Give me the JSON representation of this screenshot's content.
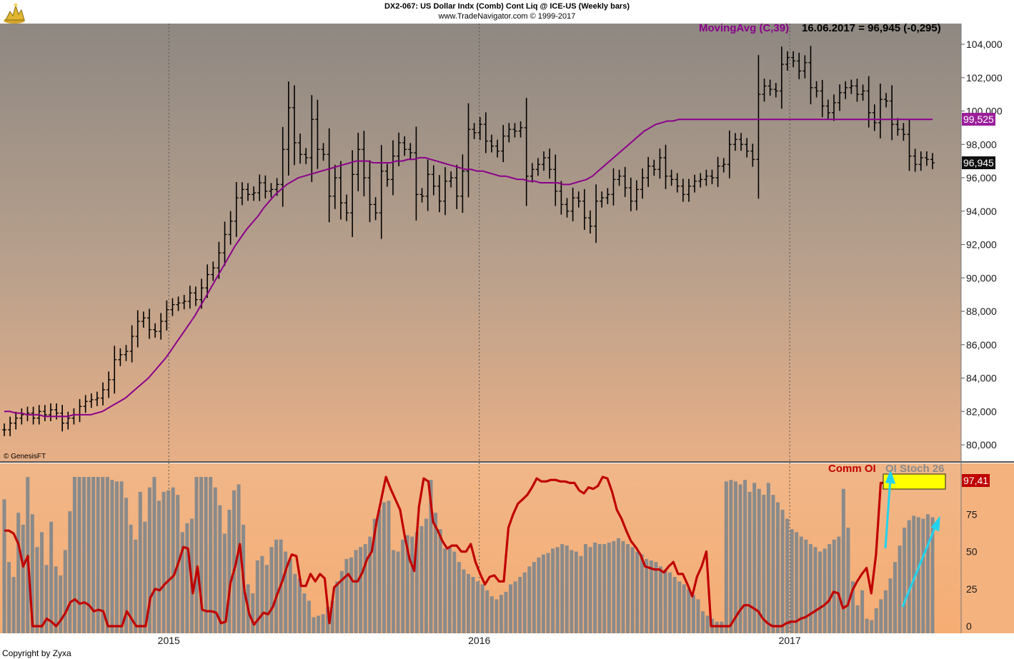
{
  "header": {
    "title": "DX2-067:  US Dollar Indx (Comb) Cont Liq @ ICE-US  (Weekly bars)",
    "subtitle": "www.TradeNavigator.com © 1999-2017"
  },
  "legend": {
    "moving_avg": "MovingAvg (C,39)",
    "last_value": "16.06.2017 = 96,945 (-0,295)",
    "comm_oi": "Comm OI",
    "oi_stoch": "OI Stoch 26"
  },
  "badges": {
    "ma": "99,525",
    "last": "96,945",
    "comm_oi": "97,41"
  },
  "footer": {
    "genesis": "© GenesisFT",
    "copyright": "Copyright by Zyxa"
  },
  "colors": {
    "ma_line": "#8B008B",
    "comm_oi_line": "#c00000",
    "bars": "#000000",
    "oi_stoch_bars": "#8a8a8a",
    "highlight_box": "#ffff00",
    "arrows": "#22d3ee"
  },
  "chart_data": [
    {
      "type": "ohlc",
      "name": "price",
      "ylim": [
        79000,
        105000
      ],
      "yticks": [
        80000,
        82000,
        84000,
        86000,
        88000,
        90000,
        92000,
        94000,
        96000,
        98000,
        100000,
        102000,
        104000
      ],
      "ytick_labels": [
        "80,000",
        "82,000",
        "84,000",
        "86,000",
        "88,000",
        "90,000",
        "92,000",
        "94,000",
        "96,000",
        "98,000",
        "100,000",
        "102,000",
        "104,000"
      ],
      "xticks": [
        2015,
        2016,
        2017
      ],
      "x_start": 2014.47,
      "x_end": 2017.46,
      "close": [
        80.9,
        81.3,
        81.6,
        81.8,
        81.9,
        81.6,
        82.0,
        81.8,
        82.1,
        81.9,
        81.3,
        81.6,
        81.8,
        82.3,
        82.6,
        82.7,
        82.8,
        83.3,
        83.9,
        85.1,
        85.4,
        85.6,
        86.5,
        87.4,
        87.6,
        86.9,
        86.8,
        87.4,
        88.1,
        88.4,
        88.5,
        88.6,
        89.1,
        88.7,
        89.4,
        90.2,
        90.6,
        91.5,
        92.6,
        93.4,
        94.8,
        95.3,
        95.0,
        95.1,
        95.7,
        95.2,
        95.3,
        95.6,
        97.7,
        100.2,
        98.1,
        97.4,
        97.2,
        99.5,
        97.7,
        97.4,
        94.9,
        96.0,
        94.5,
        93.9,
        96.2,
        97.7,
        96.0,
        94.4,
        93.9,
        96.4,
        95.9,
        97.3,
        98.1,
        97.7,
        97.5,
        95.0,
        94.9,
        96.2,
        95.5,
        94.6,
        95.8,
        96.0,
        94.9,
        96.4,
        98.9,
        98.7,
        99.2,
        98.2,
        97.9,
        97.6,
        98.5,
        98.9,
        98.8,
        99.0,
        96.1,
        96.5,
        96.8,
        97.2,
        96.5,
        95.2,
        94.4,
        94.0,
        94.8,
        94.6,
        93.6,
        93.1,
        94.6,
        94.8,
        95.0,
        95.9,
        96.1,
        95.4,
        94.6,
        95.3,
        96.0,
        96.7,
        96.5,
        97.2,
        96.1,
        95.9,
        95.5,
        95.0,
        95.5,
        95.8,
        95.9,
        96.1,
        96.0,
        96.7,
        96.8,
        98.0,
        98.3,
        98.0,
        97.6,
        97.1,
        101.0,
        101.5,
        101.3,
        101.2,
        102.8,
        103.2,
        103.0,
        102.4,
        102.9,
        101.4,
        101.2,
        100.3,
        99.9,
        100.5,
        101.1,
        101.4,
        101.5,
        101.0,
        101.2,
        99.9,
        99.3,
        100.7,
        100.6,
        99.2,
        98.9,
        98.6,
        97.3,
        96.8,
        97.2,
        97.1,
        96.9
      ],
      "moving_avg": [
        82.0,
        82.0,
        81.9,
        81.9,
        81.8,
        81.8,
        81.8,
        81.7,
        81.7,
        81.7,
        81.7,
        81.7,
        81.8,
        81.8,
        81.8,
        81.8,
        81.9,
        82.0,
        82.2,
        82.4,
        82.6,
        82.8,
        83.1,
        83.4,
        83.7,
        84.0,
        84.4,
        84.8,
        85.2,
        85.7,
        86.2,
        86.7,
        87.2,
        87.7,
        88.3,
        88.9,
        89.5,
        90.1,
        90.7,
        91.3,
        91.9,
        92.4,
        92.9,
        93.3,
        93.7,
        94.2,
        94.6,
        95.0,
        95.3,
        95.6,
        95.8,
        96.0,
        96.1,
        96.2,
        96.3,
        96.4,
        96.5,
        96.6,
        96.7,
        96.8,
        96.9,
        97.0,
        97.0,
        97.0,
        96.9,
        96.9,
        96.9,
        96.9,
        97.0,
        97.0,
        97.1,
        97.1,
        97.2,
        97.2,
        97.1,
        97.0,
        96.9,
        96.8,
        96.7,
        96.6,
        96.5,
        96.5,
        96.4,
        96.4,
        96.3,
        96.2,
        96.1,
        96.1,
        96.0,
        95.9,
        95.9,
        95.8,
        95.8,
        95.7,
        95.7,
        95.7,
        95.7,
        95.6,
        95.6,
        95.7,
        95.8,
        95.9,
        96.1,
        96.4,
        96.7,
        97.0,
        97.3,
        97.6,
        97.9,
        98.2,
        98.5,
        98.8,
        99.0,
        99.2,
        99.3,
        99.4,
        99.4,
        99.5,
        99.5,
        99.5,
        99.5,
        99.5,
        99.5,
        99.5,
        99.5,
        99.5,
        99.5,
        99.5,
        99.5,
        99.5,
        99.5,
        99.5,
        99.5,
        99.5,
        99.5,
        99.5,
        99.5,
        99.5,
        99.5,
        99.5,
        99.5,
        99.5,
        99.5,
        99.5,
        99.5,
        99.5,
        99.5,
        99.5,
        99.5,
        99.5,
        99.5,
        99.5,
        99.5,
        99.5,
        99.5,
        99.5,
        99.5,
        99.5,
        99.5,
        99.5,
        99.5,
        99.5
      ]
    },
    {
      "type": "bar+line",
      "name": "indicator",
      "ylim": [
        0,
        100
      ],
      "yticks": [
        0,
        25,
        50,
        75
      ],
      "series": [
        {
          "name": "Comm OI",
          "values": [
            64,
            64,
            62,
            55,
            40,
            47,
            0,
            0,
            0,
            5,
            3,
            0,
            4,
            9,
            16,
            18,
            15,
            16,
            14,
            10,
            11,
            10,
            0,
            0,
            0,
            0,
            10,
            5,
            0,
            0,
            0,
            19,
            25,
            24,
            28,
            31,
            34,
            43,
            53,
            52,
            22,
            40,
            11,
            10,
            10,
            9,
            2,
            3,
            29,
            40,
            55,
            23,
            8,
            1,
            5,
            9,
            8,
            13,
            22,
            30,
            40,
            48,
            47,
            27,
            27,
            35,
            30,
            35,
            32,
            2,
            26,
            29,
            32,
            35,
            30,
            30,
            36,
            45,
            50,
            70,
            85,
            100,
            92,
            85,
            78,
            60,
            45,
            37,
            80,
            99,
            97,
            70,
            64,
            57,
            52,
            54,
            54,
            50,
            50,
            55,
            43,
            35,
            28,
            33,
            34,
            30,
            30,
            66,
            75,
            82,
            85,
            88,
            93,
            99,
            97,
            97,
            98,
            98,
            97,
            97,
            96,
            96,
            91,
            89,
            93,
            92,
            94,
            100,
            99,
            90,
            78,
            72,
            64,
            57,
            53,
            48,
            40,
            39,
            38,
            38,
            36,
            40,
            43,
            35,
            35,
            28,
            20,
            33,
            40,
            50,
            0,
            0,
            0,
            0,
            0,
            5,
            10,
            14,
            14,
            12,
            10,
            5,
            2,
            0,
            0,
            0,
            2,
            3,
            3,
            5,
            6,
            8,
            10,
            12,
            14,
            17,
            23,
            22,
            12,
            14,
            24,
            30,
            35,
            39,
            22,
            48,
            96,
            96,
            96,
            96,
            96,
            96,
            96,
            96,
            97,
            96,
            95,
            93
          ]
        },
        {
          "name": "OI Stoch 26",
          "values": [
            85,
            43,
            33,
            76,
            68,
            100,
            75,
            53,
            63,
            41,
            70,
            40,
            34,
            51,
            77,
            100,
            100,
            100,
            100,
            100,
            100,
            100,
            100,
            98,
            97,
            97,
            86,
            68,
            58,
            90,
            70,
            93,
            100,
            84,
            90,
            91,
            93,
            88,
            63,
            69,
            72,
            100,
            100,
            100,
            100,
            93,
            81,
            62,
            78,
            91,
            95,
            68,
            28,
            22,
            44,
            47,
            41,
            53,
            58,
            58,
            50,
            45,
            35,
            32,
            22,
            17,
            6,
            7,
            8,
            13,
            17,
            30,
            37,
            45,
            46,
            51,
            53,
            55,
            60,
            72,
            78,
            83,
            84,
            51,
            50,
            58,
            61,
            60,
            63,
            67,
            72,
            98,
            76,
            65,
            52,
            53,
            50,
            43,
            38,
            35,
            33,
            30,
            28,
            24,
            20,
            18,
            21,
            23,
            28,
            30,
            33,
            36,
            40,
            43,
            46,
            48,
            49,
            52,
            53,
            55,
            54,
            51,
            50,
            47,
            55,
            53,
            56,
            55,
            55,
            56,
            57,
            59,
            57,
            55,
            53,
            50,
            48,
            45,
            44,
            43,
            40,
            38,
            36,
            33,
            30,
            28,
            25,
            21,
            18,
            10,
            7,
            5,
            3,
            3,
            97,
            98,
            97,
            95,
            98,
            90,
            96,
            92,
            88,
            96,
            88,
            83,
            78,
            72,
            65,
            63,
            60,
            58,
            55,
            53,
            50,
            52,
            55,
            58,
            60,
            92,
            66,
            30,
            14,
            24,
            5,
            4,
            12,
            18,
            24,
            32,
            43,
            54,
            66,
            71,
            74,
            73,
            72,
            75,
            73
          ]
        }
      ]
    }
  ]
}
